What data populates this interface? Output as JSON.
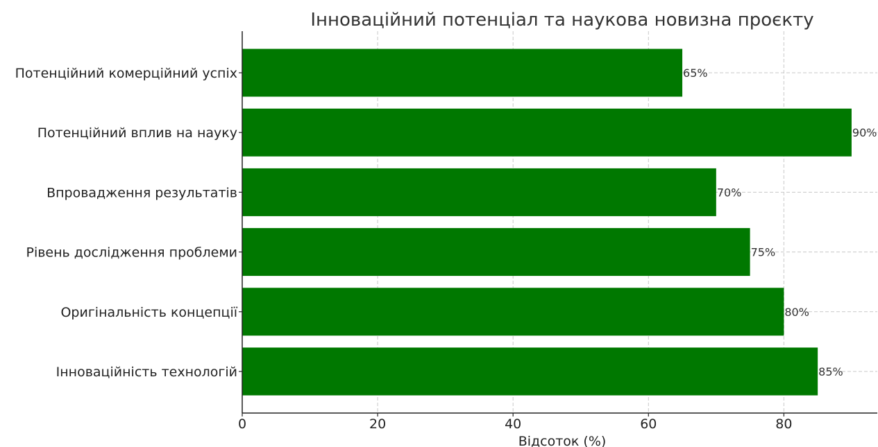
{
  "chart_data": {
    "type": "bar",
    "orientation": "horizontal",
    "title": "Інноваційний потенціал та наукова новизна проєкту",
    "xlabel": "Відсоток (%)",
    "ylabel": "",
    "categories": [
      "Інноваційність технологій",
      "Оригінальність концепції",
      "Рівень дослідження проблеми",
      "Впровадження результатів",
      "Потенційний вплив на науку",
      "Потенційний комерційний успіх"
    ],
    "values": [
      85,
      80,
      75,
      70,
      90,
      65
    ],
    "value_labels": [
      "85%",
      "80%",
      "75%",
      "70%",
      "90%",
      "65%"
    ],
    "xticks": [
      0,
      20,
      40,
      60,
      80
    ],
    "xtick_labels": [
      "0",
      "20",
      "40",
      "60",
      "80"
    ],
    "xlim": [
      0,
      93.8
    ],
    "grid": true,
    "bar_color": "#007800"
  }
}
